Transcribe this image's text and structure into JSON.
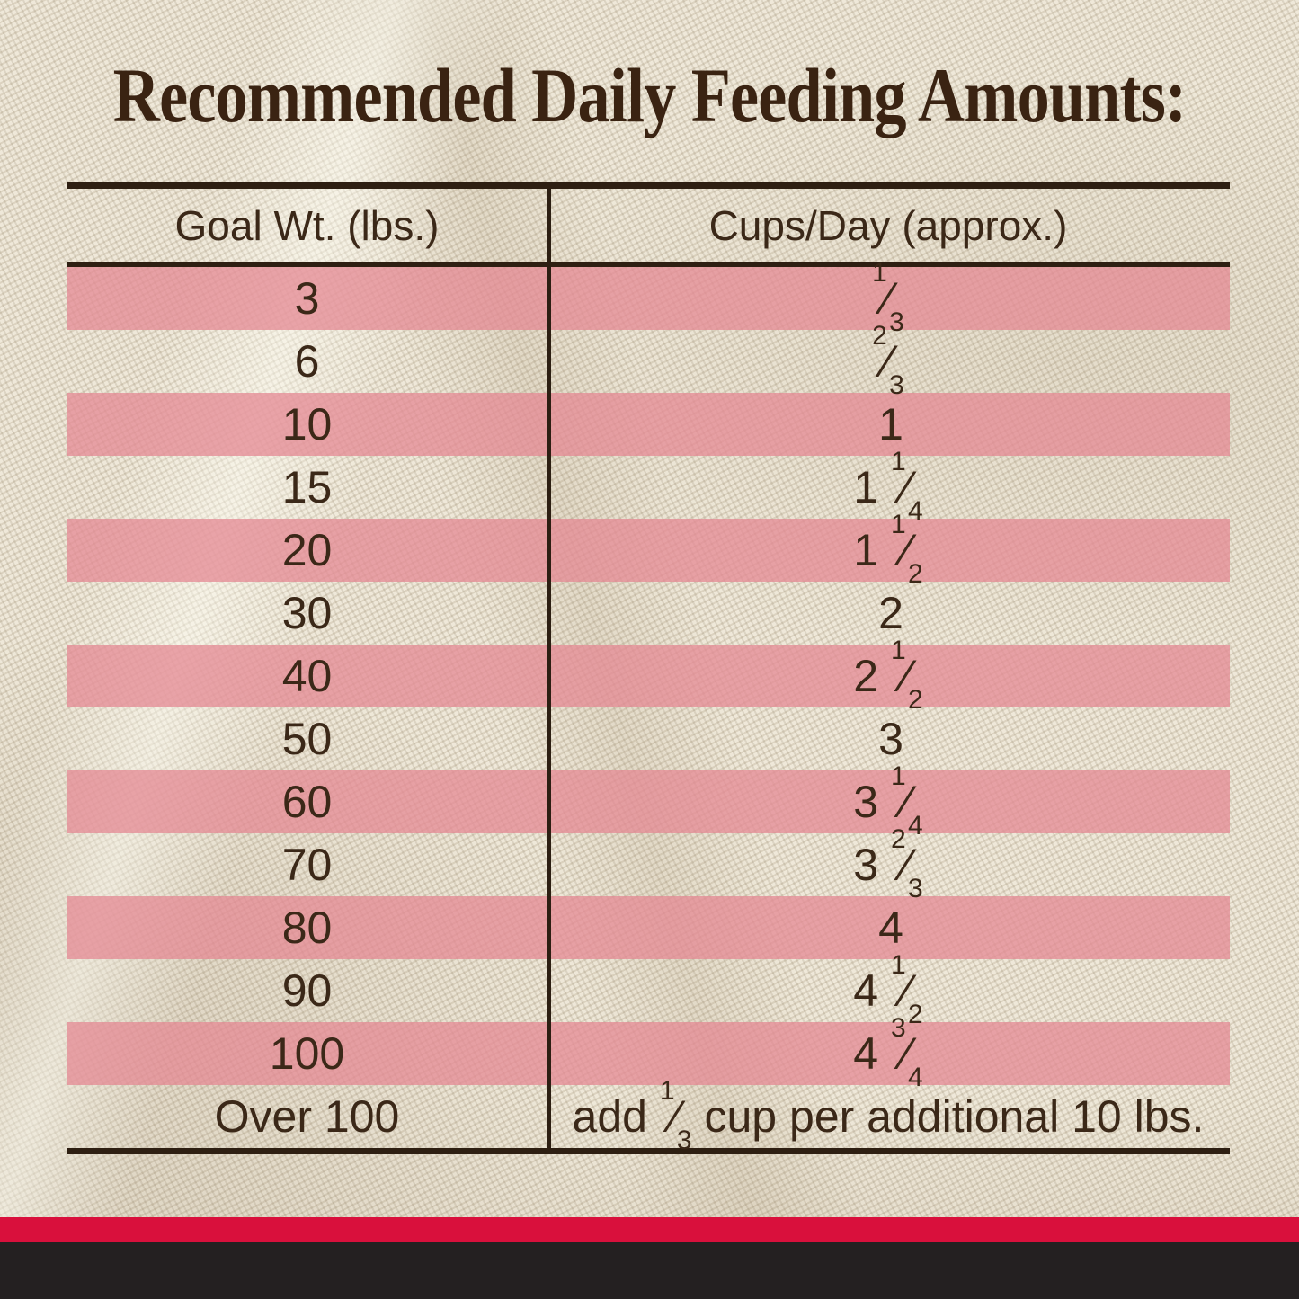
{
  "title": "Recommended Daily Feeding Amounts:",
  "colors": {
    "text_brown": "#3B2818",
    "rule_brown": "#2E1F12",
    "pink_stripe": "#E8919C",
    "fabric_cream": "#E9E1CF",
    "red_band": "#D9103C",
    "black_band": "#242021"
  },
  "table": {
    "headers": {
      "goal": "Goal Wt. (lbs.)",
      "cups": "Cups/Day (approx.)"
    },
    "rows": [
      {
        "goal": "3",
        "whole": "",
        "num": "1",
        "slash": "⁄",
        "den": "3",
        "post": ""
      },
      {
        "goal": "6",
        "whole": "",
        "num": "2",
        "slash": "⁄",
        "den": "3",
        "post": ""
      },
      {
        "goal": "10",
        "whole": "1",
        "num": "",
        "slash": "",
        "den": "",
        "post": ""
      },
      {
        "goal": "15",
        "whole": "1 ",
        "num": "1",
        "slash": "⁄",
        "den": "4",
        "post": ""
      },
      {
        "goal": "20",
        "whole": "1 ",
        "num": "1",
        "slash": "⁄",
        "den": "2",
        "post": ""
      },
      {
        "goal": "30",
        "whole": "2",
        "num": "",
        "slash": "",
        "den": "",
        "post": ""
      },
      {
        "goal": "40",
        "whole": "2 ",
        "num": "1",
        "slash": "⁄",
        "den": "2",
        "post": ""
      },
      {
        "goal": "50",
        "whole": "3",
        "num": "",
        "slash": "",
        "den": "",
        "post": ""
      },
      {
        "goal": "60",
        "whole": "3 ",
        "num": "1",
        "slash": "⁄",
        "den": "4",
        "post": ""
      },
      {
        "goal": "70",
        "whole": "3 ",
        "num": "2",
        "slash": "⁄",
        "den": "3",
        "post": ""
      },
      {
        "goal": "80",
        "whole": "4",
        "num": "",
        "slash": "",
        "den": "",
        "post": ""
      },
      {
        "goal": "90",
        "whole": "4 ",
        "num": "1",
        "slash": "⁄",
        "den": "2",
        "post": ""
      },
      {
        "goal": "100",
        "whole": "4 ",
        "num": "3",
        "slash": "⁄",
        "den": "4",
        "post": ""
      },
      {
        "goal": "Over 100",
        "whole": "add ",
        "num": "1",
        "slash": "⁄",
        "den": "3",
        "post": " cup per additional 10 lbs."
      }
    ]
  }
}
